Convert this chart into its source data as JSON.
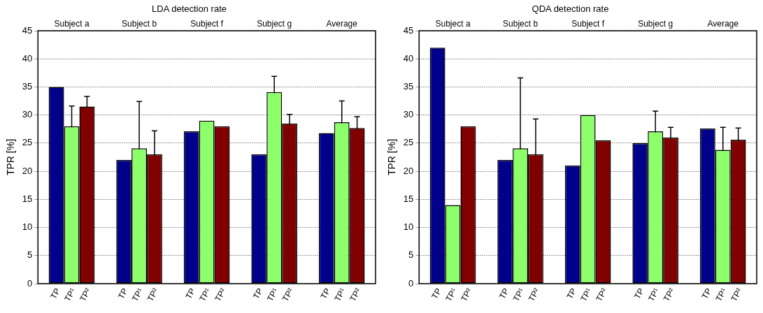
{
  "chart_data": [
    {
      "type": "bar",
      "title": "LDA detection rate",
      "ylabel": "TPR [%]",
      "categories": [
        "Subject a",
        "Subject b",
        "Subject f",
        "Subject g",
        "Average"
      ],
      "ylim": [
        0,
        45
      ],
      "yticks": [
        0,
        5,
        10,
        15,
        20,
        25,
        30,
        35,
        40,
        45
      ],
      "grid": "y",
      "legend": false,
      "series": [
        {
          "name": "TP",
          "color": "#00008b",
          "values": [
            35.0,
            22.0,
            27.1,
            23.0,
            26.8
          ]
        },
        {
          "name": "TP¹",
          "color": "#8cff6a",
          "values": [
            28.0,
            24.1,
            29.0,
            34.1,
            28.7
          ],
          "errors": [
            3.6,
            8.3,
            null,
            2.8,
            3.8
          ]
        },
        {
          "name": "TP²",
          "color": "#800000",
          "values": [
            31.5,
            23.0,
            28.0,
            28.5,
            27.7
          ],
          "errors": [
            1.8,
            4.2,
            null,
            1.6,
            2.0
          ]
        }
      ]
    },
    {
      "type": "bar",
      "title": "QDA detection rate",
      "ylabel": "TPR [%]",
      "categories": [
        "Subject a",
        "Subject b",
        "Subject f",
        "Subject g",
        "Average"
      ],
      "ylim": [
        0,
        45
      ],
      "yticks": [
        0,
        5,
        10,
        15,
        20,
        25,
        30,
        35,
        40,
        45
      ],
      "grid": "y",
      "legend": false,
      "series": [
        {
          "name": "TP",
          "color": "#00008b",
          "values": [
            42.0,
            22.0,
            21.0,
            25.0,
            27.6
          ]
        },
        {
          "name": "TP¹",
          "color": "#8cff6a",
          "values": [
            14.0,
            24.1,
            30.0,
            27.1,
            23.8
          ],
          "errors": [
            null,
            12.5,
            null,
            3.6,
            4.0
          ]
        },
        {
          "name": "TP²",
          "color": "#800000",
          "values": [
            28.0,
            23.0,
            25.5,
            26.0,
            25.6
          ],
          "errors": [
            null,
            6.3,
            null,
            1.8,
            2.1
          ]
        }
      ]
    }
  ]
}
